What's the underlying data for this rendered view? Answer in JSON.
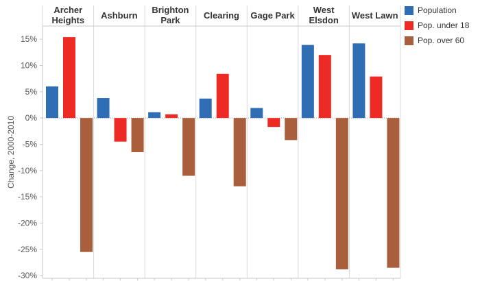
{
  "chart_data": {
    "type": "bar",
    "categories": [
      "Archer Heights",
      "Ashburn",
      "Brighton Park",
      "Clearing",
      "Gage Park",
      "West Elsdon",
      "West Lawn"
    ],
    "category_lines": [
      [
        "Archer",
        "Heights"
      ],
      [
        "Ashburn"
      ],
      [
        "Brighton",
        "Park"
      ],
      [
        "Clearing"
      ],
      [
        "Gage Park"
      ],
      [
        "West",
        "Elsdon"
      ],
      [
        "West Lawn"
      ]
    ],
    "series": [
      {
        "name": "Population",
        "color": "#2f6db5",
        "values": [
          6.0,
          3.8,
          1.1,
          3.7,
          1.9,
          13.9,
          14.2
        ]
      },
      {
        "name": "Pop. under 18",
        "color": "#ee2a24",
        "values": [
          15.4,
          -4.5,
          0.7,
          8.4,
          -1.7,
          12.0,
          7.9
        ]
      },
      {
        "name": "Pop. over 60",
        "color": "#a95f3c",
        "values": [
          -25.5,
          -6.5,
          -11.0,
          -13.0,
          -4.2,
          -28.8,
          -28.5
        ]
      }
    ],
    "ylabel": "Change, 2000-2010",
    "y_ticks": [
      "15%",
      "10%",
      "5%",
      "0%",
      "-5%",
      "-10%",
      "-15%",
      "-20%",
      "-25%",
      "-30%"
    ],
    "ylim": [
      -30.5,
      17.5
    ],
    "grid": false,
    "legend_position": "right"
  }
}
